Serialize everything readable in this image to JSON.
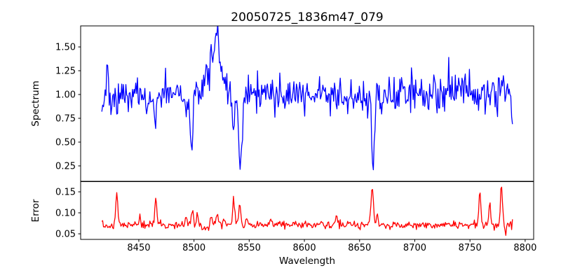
{
  "title": "20050725_1836m47_079",
  "background_color": "#ffffff",
  "spine_color": "#000000",
  "chart_data": {
    "type": "line",
    "title": "20050725_1836m47_079",
    "x_axis": {
      "label": "Wavelength",
      "xlim": [
        8397.3,
        8807.7
      ],
      "ticks": [
        8450,
        8500,
        8550,
        8600,
        8650,
        8700,
        8750,
        8800
      ],
      "tick_labels": [
        "8450",
        "8500",
        "8550",
        "8600",
        "8650",
        "8700",
        "8750",
        "8800"
      ],
      "data_start": 8416.5,
      "data_step": 0.75,
      "n_points": 497
    },
    "subplots": [
      {
        "id": "spectrum",
        "ylabel": "Spectrum",
        "line_color": "#0000ff",
        "ylim": [
          0.088,
          1.721
        ],
        "yticks": [
          0.25,
          0.5,
          0.75,
          1.0,
          1.25,
          1.5
        ],
        "ytick_labels": [
          "0.25",
          "0.50",
          "0.75",
          "1.00",
          "1.25",
          "1.50"
        ],
        "baseline": 1.0,
        "noise_sigma": 0.095,
        "noise_seed": 20050725,
        "features": [
          [
            8421.0,
            0.7,
            0.2
          ],
          [
            8425.0,
            0.7,
            -0.22
          ],
          [
            8430.0,
            0.9,
            -0.28
          ],
          [
            8458.0,
            0.8,
            -0.22
          ],
          [
            8465.0,
            0.9,
            -0.25
          ],
          [
            8493.0,
            0.8,
            -0.22
          ],
          [
            8497.8,
            1.1,
            -0.64
          ],
          [
            8519.0,
            6.0,
            0.4
          ],
          [
            8521.0,
            2.2,
            0.18
          ],
          [
            8535.5,
            0.9,
            -0.45
          ],
          [
            8542.0,
            1.3,
            -0.78
          ],
          [
            8662.2,
            1.2,
            -0.72
          ],
          [
            8690.0,
            1.0,
            0.18
          ],
          [
            8697.0,
            0.8,
            0.14
          ],
          [
            8731.0,
            0.8,
            0.15
          ],
          [
            8762.0,
            0.8,
            0.15
          ],
          [
            8780.0,
            0.8,
            0.17
          ],
          [
            8789.0,
            1.2,
            -0.22
          ]
        ],
        "key_features": [
          {
            "wavelength": 8498,
            "value": 0.32,
            "kind": "absorption"
          },
          {
            "wavelength": 8520,
            "value": 1.62,
            "kind": "emission_bump"
          },
          {
            "wavelength": 8536,
            "value": 0.5,
            "kind": "absorption"
          },
          {
            "wavelength": 8542,
            "value": 0.18,
            "kind": "absorption"
          },
          {
            "wavelength": 8662,
            "value": 0.26,
            "kind": "absorption"
          }
        ]
      },
      {
        "id": "error",
        "ylabel": "Error",
        "line_color": "#ff0000",
        "ylim": [
          0.0367,
          0.1742
        ],
        "yticks": [
          0.05,
          0.1,
          0.15
        ],
        "ytick_labels": [
          "0.05",
          "0.10",
          "0.15"
        ],
        "baseline": 0.071,
        "noise_sigma": 0.0045,
        "noise_seed": 1836,
        "features": [
          [
            8430.0,
            1.0,
            0.071
          ],
          [
            8451.0,
            0.8,
            0.018
          ],
          [
            8465.5,
            1.0,
            0.064
          ],
          [
            8493.0,
            0.9,
            0.026
          ],
          [
            8498.5,
            0.9,
            0.038
          ],
          [
            8503.0,
            0.8,
            0.028
          ],
          [
            8510.0,
            4.0,
            -0.007
          ],
          [
            8516.0,
            1.0,
            0.022
          ],
          [
            8521.0,
            1.0,
            0.028
          ],
          [
            8527.0,
            0.9,
            0.012
          ],
          [
            8536.0,
            1.0,
            0.06
          ],
          [
            8541.5,
            1.0,
            0.046
          ],
          [
            8548.0,
            0.9,
            0.012
          ],
          [
            8570.0,
            0.9,
            0.012
          ],
          [
            8576.0,
            0.9,
            0.013
          ],
          [
            8629.0,
            1.2,
            0.02
          ],
          [
            8640.0,
            1.0,
            0.01
          ],
          [
            8661.5,
            1.1,
            0.092
          ],
          [
            8666.0,
            0.8,
            0.022
          ],
          [
            8759.0,
            0.9,
            0.078
          ],
          [
            8768.0,
            0.9,
            0.052
          ],
          [
            8778.5,
            0.9,
            0.097
          ],
          [
            8782.5,
            0.7,
            -0.024
          ]
        ],
        "key_features": [
          {
            "wavelength": 8430,
            "value": 0.145,
            "kind": "spike"
          },
          {
            "wavelength": 8466,
            "value": 0.14,
            "kind": "spike"
          },
          {
            "wavelength": 8499,
            "value": 0.113,
            "kind": "spike"
          },
          {
            "wavelength": 8536,
            "value": 0.14,
            "kind": "spike"
          },
          {
            "wavelength": 8542,
            "value": 0.125,
            "kind": "spike"
          },
          {
            "wavelength": 8662,
            "value": 0.167,
            "kind": "spike"
          },
          {
            "wavelength": 8759,
            "value": 0.152,
            "kind": "spike"
          },
          {
            "wavelength": 8768,
            "value": 0.127,
            "kind": "spike"
          },
          {
            "wavelength": 8778,
            "value": 0.17,
            "kind": "spike"
          }
        ]
      }
    ]
  }
}
